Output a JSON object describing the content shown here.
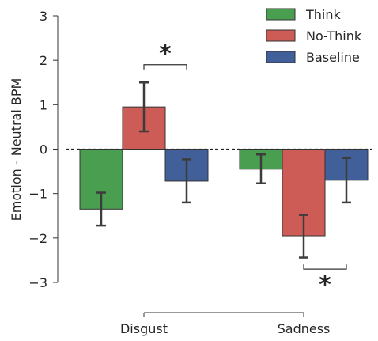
{
  "chart_data": {
    "type": "bar",
    "title": "",
    "xlabel": "",
    "ylabel": "Emotion - Neutral BPM",
    "ylim": [
      -3,
      3
    ],
    "yticks": [
      "3",
      "2",
      "1",
      "0",
      "−1",
      "−2",
      "−3"
    ],
    "ytick_values": [
      3,
      2,
      1,
      0,
      -1,
      -2,
      -3
    ],
    "categories": [
      "Disgust",
      "Sadness"
    ],
    "series": [
      {
        "name": "Think",
        "color": "#4a9e4f",
        "values": [
          -1.35,
          -0.45
        ],
        "err_low": [
          -1.72,
          -0.77
        ],
        "err_high": [
          -0.98,
          -0.12
        ]
      },
      {
        "name": "No-Think",
        "color": "#cd5c57",
        "values": [
          0.95,
          -1.95
        ],
        "err_low": [
          0.4,
          -2.44
        ],
        "err_high": [
          1.5,
          -1.48
        ]
      },
      {
        "name": "Baseline",
        "color": "#41609a",
        "values": [
          -0.72,
          -0.7
        ],
        "err_low": [
          -1.2,
          -1.2
        ],
        "err_high": [
          -0.23,
          -0.2
        ]
      }
    ],
    "significance": [
      {
        "label": "*",
        "category": 0,
        "from_series": 1,
        "to_series": 2,
        "y": 1.9,
        "position": "above"
      },
      {
        "label": "*",
        "category": 1,
        "from_series": 1,
        "to_series": 2,
        "y": -2.7,
        "position": "below"
      }
    ],
    "zero_line": "dashed",
    "grid": false,
    "legend_position": "top-right"
  }
}
